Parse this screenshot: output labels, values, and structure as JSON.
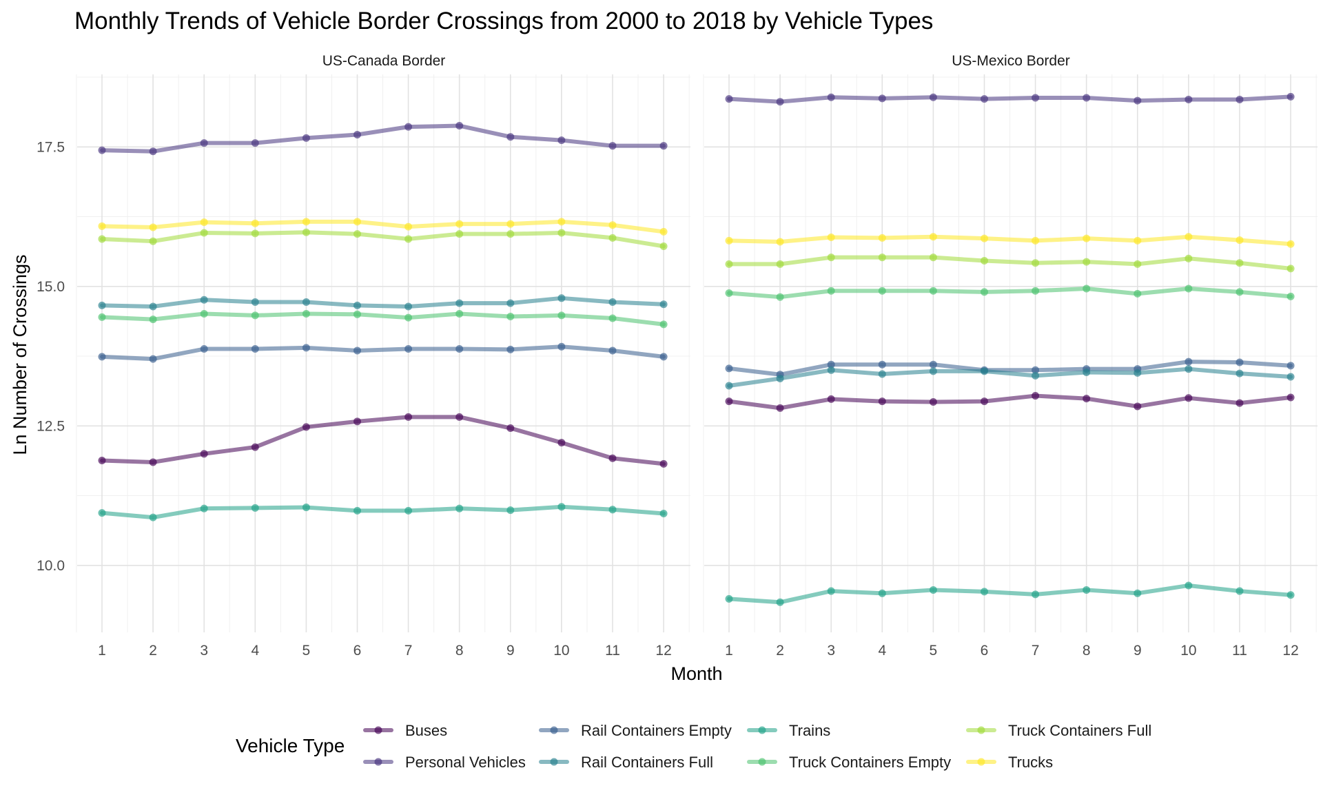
{
  "chart_data": {
    "type": "line",
    "title": "Monthly Trends of Vehicle Border Crossings from 2000 to 2018 by Vehicle Types",
    "xlabel": "Month",
    "ylabel": "Ln Number of Crossings",
    "x": [
      1,
      2,
      3,
      4,
      5,
      6,
      7,
      8,
      9,
      10,
      11,
      12
    ],
    "ylim": [
      8.8,
      18.8
    ],
    "yticks": [
      10.0,
      12.5,
      15.0,
      17.5
    ],
    "ytick_labels": [
      "10.0",
      "12.5",
      "15.0",
      "17.5"
    ],
    "grid": true,
    "legend": {
      "title": "Vehicle Type",
      "placement": "bottom",
      "entries": [
        {
          "label": "Buses",
          "color": "#440154"
        },
        {
          "label": "Personal Vehicles",
          "color": "#46337e"
        },
        {
          "label": "Rail Containers Empty",
          "color": "#365c8d"
        },
        {
          "label": "Rail Containers Full",
          "color": "#277f8e"
        },
        {
          "label": "Trains",
          "color": "#1fa187"
        },
        {
          "label": "Truck Containers Empty",
          "color": "#4ac16d"
        },
        {
          "label": "Truck Containers Full",
          "color": "#a0da39"
        },
        {
          "label": "Trucks",
          "color": "#fde725"
        }
      ]
    },
    "facets": [
      {
        "name": "US-Canada Border",
        "series": [
          {
            "name": "Buses",
            "values": [
              11.88,
              11.85,
              12.0,
              12.12,
              12.48,
              12.58,
              12.66,
              12.66,
              12.46,
              12.2,
              11.92,
              11.82
            ]
          },
          {
            "name": "Personal Vehicles",
            "values": [
              17.44,
              17.42,
              17.57,
              17.57,
              17.66,
              17.72,
              17.86,
              17.88,
              17.68,
              17.62,
              17.52,
              17.52
            ]
          },
          {
            "name": "Rail Containers Empty",
            "values": [
              13.74,
              13.7,
              13.88,
              13.88,
              13.9,
              13.85,
              13.88,
              13.88,
              13.87,
              13.92,
              13.85,
              13.74
            ]
          },
          {
            "name": "Rail Containers Full",
            "values": [
              14.66,
              14.64,
              14.76,
              14.72,
              14.72,
              14.66,
              14.64,
              14.7,
              14.7,
              14.79,
              14.72,
              14.68
            ]
          },
          {
            "name": "Trains",
            "values": [
              10.94,
              10.86,
              11.02,
              11.03,
              11.04,
              10.98,
              10.98,
              11.02,
              10.99,
              11.05,
              11.0,
              10.93
            ]
          },
          {
            "name": "Truck Containers Empty",
            "values": [
              14.45,
              14.41,
              14.51,
              14.48,
              14.51,
              14.5,
              14.44,
              14.51,
              14.46,
              14.48,
              14.43,
              14.32
            ]
          },
          {
            "name": "Truck Containers Full",
            "values": [
              15.85,
              15.81,
              15.96,
              15.95,
              15.97,
              15.94,
              15.85,
              15.94,
              15.94,
              15.96,
              15.87,
              15.72
            ]
          },
          {
            "name": "Trucks",
            "values": [
              16.08,
              16.06,
              16.15,
              16.13,
              16.16,
              16.16,
              16.07,
              16.12,
              16.12,
              16.16,
              16.1,
              15.98
            ]
          }
        ]
      },
      {
        "name": "US-Mexico Border",
        "series": [
          {
            "name": "Buses",
            "values": [
              12.94,
              12.82,
              12.98,
              12.94,
              12.93,
              12.94,
              13.04,
              12.99,
              12.85,
              13.0,
              12.91,
              13.01
            ]
          },
          {
            "name": "Personal Vehicles",
            "values": [
              18.36,
              18.31,
              18.39,
              18.37,
              18.39,
              18.36,
              18.38,
              18.38,
              18.33,
              18.35,
              18.35,
              18.4
            ]
          },
          {
            "name": "Rail Containers Empty",
            "values": [
              13.53,
              13.42,
              13.6,
              13.6,
              13.6,
              13.5,
              13.5,
              13.52,
              13.52,
              13.65,
              13.64,
              13.58
            ]
          },
          {
            "name": "Rail Containers Full",
            "values": [
              13.22,
              13.35,
              13.5,
              13.43,
              13.48,
              13.48,
              13.4,
              13.46,
              13.45,
              13.52,
              13.44,
              13.38
            ]
          },
          {
            "name": "Trains",
            "values": [
              9.4,
              9.34,
              9.54,
              9.5,
              9.56,
              9.53,
              9.48,
              9.56,
              9.5,
              9.64,
              9.54,
              9.47
            ]
          },
          {
            "name": "Truck Containers Empty",
            "values": [
              14.88,
              14.81,
              14.92,
              14.92,
              14.92,
              14.9,
              14.92,
              14.96,
              14.87,
              14.96,
              14.9,
              14.82
            ]
          },
          {
            "name": "Truck Containers Full",
            "values": [
              15.4,
              15.4,
              15.52,
              15.52,
              15.52,
              15.46,
              15.42,
              15.44,
              15.4,
              15.5,
              15.42,
              15.32
            ]
          },
          {
            "name": "Trucks",
            "values": [
              15.82,
              15.8,
              15.88,
              15.87,
              15.89,
              15.86,
              15.82,
              15.86,
              15.82,
              15.89,
              15.83,
              15.76
            ]
          }
        ]
      }
    ]
  }
}
